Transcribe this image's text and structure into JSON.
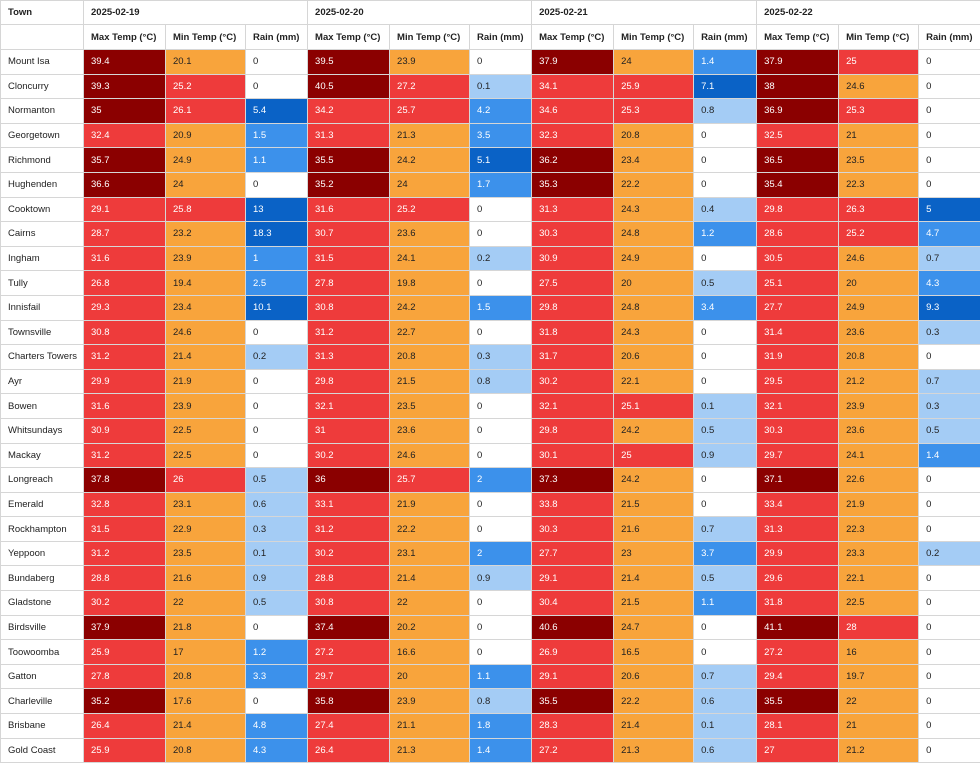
{
  "table": {
    "town_header": "Town",
    "dates": [
      "2025-02-19",
      "2025-02-20",
      "2025-02-21",
      "2025-02-22"
    ],
    "col_labels": [
      "Max Temp (°C)",
      "Min Temp (°C)",
      "Rain (mm)"
    ],
    "legend_colors": {
      "max_temp_extreme": "#8b0000",
      "temp_hot": "#ee3b3b",
      "temp_warm": "#f8a43c",
      "rain_none": "#ffffff",
      "rain_light": "#a4ccf5",
      "rain_moderate": "#3c91eb",
      "rain_heavy": "#0a62c6"
    },
    "rows": [
      {
        "town": "Mount Isa",
        "days": [
          [
            "39.4",
            "20.1",
            "0"
          ],
          [
            "39.5",
            "23.9",
            "0"
          ],
          [
            "37.9",
            "24",
            "1.4"
          ],
          [
            "37.9",
            "25",
            "0"
          ]
        ]
      },
      {
        "town": "Cloncurry",
        "days": [
          [
            "39.3",
            "25.2",
            "0"
          ],
          [
            "40.5",
            "27.2",
            "0.1"
          ],
          [
            "34.1",
            "25.9",
            "7.1"
          ],
          [
            "38",
            "24.6",
            "0"
          ]
        ]
      },
      {
        "town": "Normanton",
        "days": [
          [
            "35",
            "26.1",
            "5.4"
          ],
          [
            "34.2",
            "25.7",
            "4.2"
          ],
          [
            "34.6",
            "25.3",
            "0.8"
          ],
          [
            "36.9",
            "25.3",
            "0"
          ]
        ]
      },
      {
        "town": "Georgetown",
        "days": [
          [
            "32.4",
            "20.9",
            "1.5"
          ],
          [
            "31.3",
            "21.3",
            "3.5"
          ],
          [
            "32.3",
            "20.8",
            "0"
          ],
          [
            "32.5",
            "21",
            "0"
          ]
        ]
      },
      {
        "town": "Richmond",
        "days": [
          [
            "35.7",
            "24.9",
            "1.1"
          ],
          [
            "35.5",
            "24.2",
            "5.1"
          ],
          [
            "36.2",
            "23.4",
            "0"
          ],
          [
            "36.5",
            "23.5",
            "0"
          ]
        ]
      },
      {
        "town": "Hughenden",
        "days": [
          [
            "36.6",
            "24",
            "0"
          ],
          [
            "35.2",
            "24",
            "1.7"
          ],
          [
            "35.3",
            "22.2",
            "0"
          ],
          [
            "35.4",
            "22.3",
            "0"
          ]
        ]
      },
      {
        "town": "Cooktown",
        "days": [
          [
            "29.1",
            "25.8",
            "13"
          ],
          [
            "31.6",
            "25.2",
            "0"
          ],
          [
            "31.3",
            "24.3",
            "0.4"
          ],
          [
            "29.8",
            "26.3",
            "5"
          ]
        ]
      },
      {
        "town": "Cairns",
        "days": [
          [
            "28.7",
            "23.2",
            "18.3"
          ],
          [
            "30.7",
            "23.6",
            "0"
          ],
          [
            "30.3",
            "24.8",
            "1.2"
          ],
          [
            "28.6",
            "25.2",
            "4.7"
          ]
        ]
      },
      {
        "town": "Ingham",
        "days": [
          [
            "31.6",
            "23.9",
            "1"
          ],
          [
            "31.5",
            "24.1",
            "0.2"
          ],
          [
            "30.9",
            "24.9",
            "0"
          ],
          [
            "30.5",
            "24.6",
            "0.7"
          ]
        ]
      },
      {
        "town": "Tully",
        "days": [
          [
            "26.8",
            "19.4",
            "2.5"
          ],
          [
            "27.8",
            "19.8",
            "0"
          ],
          [
            "27.5",
            "20",
            "0.5"
          ],
          [
            "25.1",
            "20",
            "4.3"
          ]
        ]
      },
      {
        "town": "Innisfail",
        "days": [
          [
            "29.3",
            "23.4",
            "10.1"
          ],
          [
            "30.8",
            "24.2",
            "1.5"
          ],
          [
            "29.8",
            "24.8",
            "3.4"
          ],
          [
            "27.7",
            "24.9",
            "9.3"
          ]
        ]
      },
      {
        "town": "Townsville",
        "days": [
          [
            "30.8",
            "24.6",
            "0"
          ],
          [
            "31.2",
            "22.7",
            "0"
          ],
          [
            "31.8",
            "24.3",
            "0"
          ],
          [
            "31.4",
            "23.6",
            "0.3"
          ]
        ]
      },
      {
        "town": "Charters Towers",
        "days": [
          [
            "31.2",
            "21.4",
            "0.2"
          ],
          [
            "31.3",
            "20.8",
            "0.3"
          ],
          [
            "31.7",
            "20.6",
            "0"
          ],
          [
            "31.9",
            "20.8",
            "0"
          ]
        ]
      },
      {
        "town": "Ayr",
        "days": [
          [
            "29.9",
            "21.9",
            "0"
          ],
          [
            "29.8",
            "21.5",
            "0.8"
          ],
          [
            "30.2",
            "22.1",
            "0"
          ],
          [
            "29.5",
            "21.2",
            "0.7"
          ]
        ]
      },
      {
        "town": "Bowen",
        "days": [
          [
            "31.6",
            "23.9",
            "0"
          ],
          [
            "32.1",
            "23.5",
            "0"
          ],
          [
            "32.1",
            "25.1",
            "0.1"
          ],
          [
            "32.1",
            "23.9",
            "0.3"
          ]
        ]
      },
      {
        "town": "Whitsundays",
        "days": [
          [
            "30.9",
            "22.5",
            "0"
          ],
          [
            "31",
            "23.6",
            "0"
          ],
          [
            "29.8",
            "24.2",
            "0.5"
          ],
          [
            "30.3",
            "23.6",
            "0.5"
          ]
        ]
      },
      {
        "town": "Mackay",
        "days": [
          [
            "31.2",
            "22.5",
            "0"
          ],
          [
            "30.2",
            "24.6",
            "0"
          ],
          [
            "30.1",
            "25",
            "0.9"
          ],
          [
            "29.7",
            "24.1",
            "1.4"
          ]
        ]
      },
      {
        "town": "Longreach",
        "days": [
          [
            "37.8",
            "26",
            "0.5"
          ],
          [
            "36",
            "25.7",
            "2"
          ],
          [
            "37.3",
            "24.2",
            "0"
          ],
          [
            "37.1",
            "22.6",
            "0"
          ]
        ]
      },
      {
        "town": "Emerald",
        "days": [
          [
            "32.8",
            "23.1",
            "0.6"
          ],
          [
            "33.1",
            "21.9",
            "0"
          ],
          [
            "33.8",
            "21.5",
            "0"
          ],
          [
            "33.4",
            "21.9",
            "0"
          ]
        ]
      },
      {
        "town": "Rockhampton",
        "days": [
          [
            "31.5",
            "22.9",
            "0.3"
          ],
          [
            "31.2",
            "22.2",
            "0"
          ],
          [
            "30.3",
            "21.6",
            "0.7"
          ],
          [
            "31.3",
            "22.3",
            "0"
          ]
        ]
      },
      {
        "town": "Yeppoon",
        "days": [
          [
            "31.2",
            "23.5",
            "0.1"
          ],
          [
            "30.2",
            "23.1",
            "2"
          ],
          [
            "27.7",
            "23",
            "3.7"
          ],
          [
            "29.9",
            "23.3",
            "0.2"
          ]
        ]
      },
      {
        "town": "Bundaberg",
        "days": [
          [
            "28.8",
            "21.6",
            "0.9"
          ],
          [
            "28.8",
            "21.4",
            "0.9"
          ],
          [
            "29.1",
            "21.4",
            "0.5"
          ],
          [
            "29.6",
            "22.1",
            "0"
          ]
        ]
      },
      {
        "town": "Gladstone",
        "days": [
          [
            "30.2",
            "22",
            "0.5"
          ],
          [
            "30.8",
            "22",
            "0"
          ],
          [
            "30.4",
            "21.5",
            "1.1"
          ],
          [
            "31.8",
            "22.5",
            "0"
          ]
        ]
      },
      {
        "town": "Birdsville",
        "days": [
          [
            "37.9",
            "21.8",
            "0"
          ],
          [
            "37.4",
            "20.2",
            "0"
          ],
          [
            "40.6",
            "24.7",
            "0"
          ],
          [
            "41.1",
            "28",
            "0"
          ]
        ]
      },
      {
        "town": "Toowoomba",
        "days": [
          [
            "25.9",
            "17",
            "1.2"
          ],
          [
            "27.2",
            "16.6",
            "0"
          ],
          [
            "26.9",
            "16.5",
            "0"
          ],
          [
            "27.2",
            "16",
            "0"
          ]
        ]
      },
      {
        "town": "Gatton",
        "days": [
          [
            "27.8",
            "20.8",
            "3.3"
          ],
          [
            "29.7",
            "20",
            "1.1"
          ],
          [
            "29.1",
            "20.6",
            "0.7"
          ],
          [
            "29.4",
            "19.7",
            "0"
          ]
        ]
      },
      {
        "town": "Charleville",
        "days": [
          [
            "35.2",
            "17.6",
            "0"
          ],
          [
            "35.8",
            "23.9",
            "0.8"
          ],
          [
            "35.5",
            "22.2",
            "0.6"
          ],
          [
            "35.5",
            "22",
            "0"
          ]
        ]
      },
      {
        "town": "Brisbane",
        "days": [
          [
            "26.4",
            "21.4",
            "4.8"
          ],
          [
            "27.4",
            "21.1",
            "1.8"
          ],
          [
            "28.3",
            "21.4",
            "0.1"
          ],
          [
            "28.1",
            "21",
            "0"
          ]
        ]
      },
      {
        "town": "Gold Coast",
        "days": [
          [
            "25.9",
            "20.8",
            "4.3"
          ],
          [
            "26.4",
            "21.3",
            "1.4"
          ],
          [
            "27.2",
            "21.3",
            "0.6"
          ],
          [
            "27",
            "21.2",
            "0"
          ]
        ]
      }
    ]
  }
}
